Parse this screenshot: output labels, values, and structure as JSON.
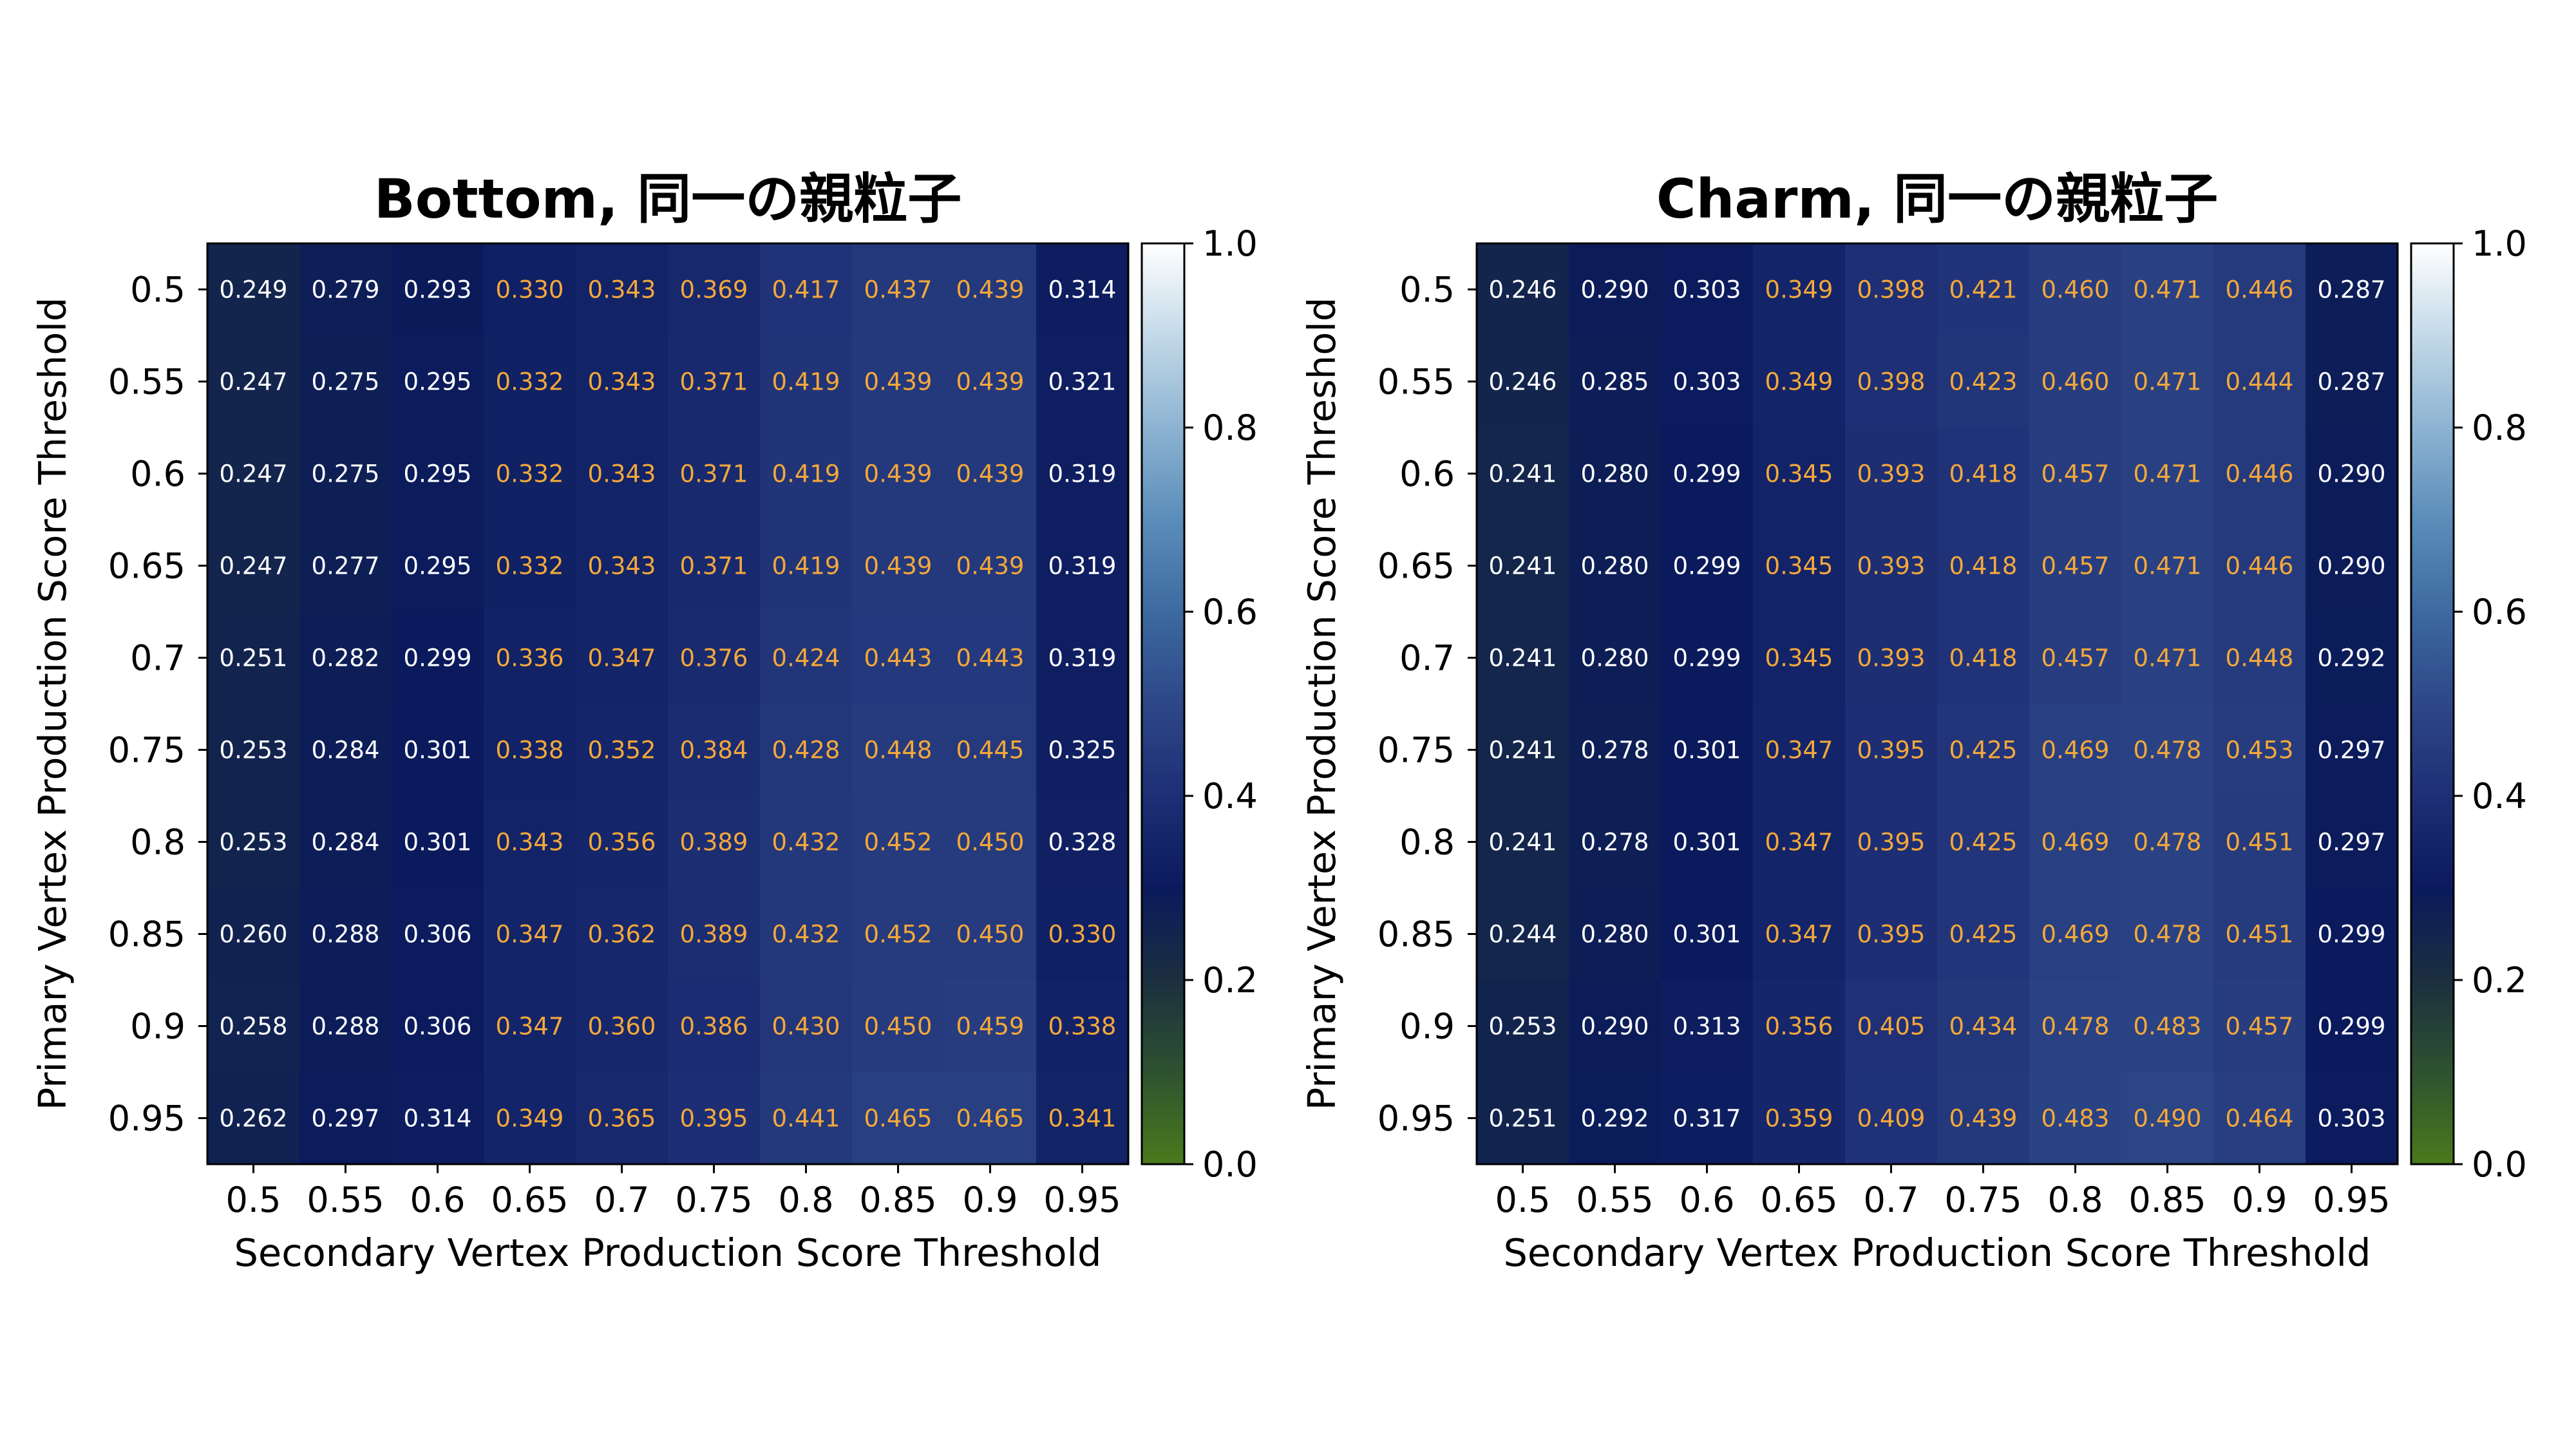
{
  "chart_data": [
    {
      "type": "heatmap",
      "title": "Bottom, 同一の親粒子",
      "xlabel": "Secondary Vertex Production Score Threshold",
      "ylabel": "Primary Vertex Production Score Threshold",
      "x": [
        "0.5",
        "0.55",
        "0.6",
        "0.65",
        "0.7",
        "0.75",
        "0.8",
        "0.85",
        "0.9",
        "0.95"
      ],
      "y": [
        "0.5",
        "0.55",
        "0.6",
        "0.65",
        "0.7",
        "0.75",
        "0.8",
        "0.85",
        "0.9",
        "0.95"
      ],
      "values": [
        [
          "0.249",
          "0.279",
          "0.293",
          "0.330",
          "0.343",
          "0.369",
          "0.417",
          "0.437",
          "0.439",
          "0.314"
        ],
        [
          "0.247",
          "0.275",
          "0.295",
          "0.332",
          "0.343",
          "0.371",
          "0.419",
          "0.439",
          "0.439",
          "0.321"
        ],
        [
          "0.247",
          "0.275",
          "0.295",
          "0.332",
          "0.343",
          "0.371",
          "0.419",
          "0.439",
          "0.439",
          "0.319"
        ],
        [
          "0.247",
          "0.277",
          "0.295",
          "0.332",
          "0.343",
          "0.371",
          "0.419",
          "0.439",
          "0.439",
          "0.319"
        ],
        [
          "0.251",
          "0.282",
          "0.299",
          "0.336",
          "0.347",
          "0.376",
          "0.424",
          "0.443",
          "0.443",
          "0.319"
        ],
        [
          "0.253",
          "0.284",
          "0.301",
          "0.338",
          "0.352",
          "0.384",
          "0.428",
          "0.448",
          "0.445",
          "0.325"
        ],
        [
          "0.253",
          "0.284",
          "0.301",
          "0.343",
          "0.356",
          "0.389",
          "0.432",
          "0.452",
          "0.450",
          "0.328"
        ],
        [
          "0.260",
          "0.288",
          "0.306",
          "0.347",
          "0.362",
          "0.389",
          "0.432",
          "0.452",
          "0.450",
          "0.330"
        ],
        [
          "0.258",
          "0.288",
          "0.306",
          "0.347",
          "0.360",
          "0.386",
          "0.430",
          "0.450",
          "0.459",
          "0.338"
        ],
        [
          "0.262",
          "0.297",
          "0.314",
          "0.349",
          "0.365",
          "0.395",
          "0.441",
          "0.465",
          "0.465",
          "0.341"
        ]
      ],
      "vmin": 0.0,
      "vmax": 1.0,
      "colorbar_ticks": [
        "0.0",
        "0.2",
        "0.4",
        "0.6",
        "0.8",
        "1.0"
      ],
      "highlight_color": "#f4a83a",
      "text_color": "#ffffff"
    },
    {
      "type": "heatmap",
      "title": "Charm, 同一の親粒子",
      "xlabel": "Secondary Vertex Production Score Threshold",
      "ylabel": "Primary Vertex Production Score Threshold",
      "x": [
        "0.5",
        "0.55",
        "0.6",
        "0.65",
        "0.7",
        "0.75",
        "0.8",
        "0.85",
        "0.9",
        "0.95"
      ],
      "y": [
        "0.5",
        "0.55",
        "0.6",
        "0.65",
        "0.7",
        "0.75",
        "0.8",
        "0.85",
        "0.9",
        "0.95"
      ],
      "values": [
        [
          "0.246",
          "0.290",
          "0.303",
          "0.349",
          "0.398",
          "0.421",
          "0.460",
          "0.471",
          "0.446",
          "0.287"
        ],
        [
          "0.246",
          "0.285",
          "0.303",
          "0.349",
          "0.398",
          "0.423",
          "0.460",
          "0.471",
          "0.444",
          "0.287"
        ],
        [
          "0.241",
          "0.280",
          "0.299",
          "0.345",
          "0.393",
          "0.418",
          "0.457",
          "0.471",
          "0.446",
          "0.290"
        ],
        [
          "0.241",
          "0.280",
          "0.299",
          "0.345",
          "0.393",
          "0.418",
          "0.457",
          "0.471",
          "0.446",
          "0.290"
        ],
        [
          "0.241",
          "0.280",
          "0.299",
          "0.345",
          "0.393",
          "0.418",
          "0.457",
          "0.471",
          "0.448",
          "0.292"
        ],
        [
          "0.241",
          "0.278",
          "0.301",
          "0.347",
          "0.395",
          "0.425",
          "0.469",
          "0.478",
          "0.453",
          "0.297"
        ],
        [
          "0.241",
          "0.278",
          "0.301",
          "0.347",
          "0.395",
          "0.425",
          "0.469",
          "0.478",
          "0.451",
          "0.297"
        ],
        [
          "0.244",
          "0.280",
          "0.301",
          "0.347",
          "0.395",
          "0.425",
          "0.469",
          "0.478",
          "0.451",
          "0.299"
        ],
        [
          "0.253",
          "0.290",
          "0.313",
          "0.356",
          "0.405",
          "0.434",
          "0.478",
          "0.483",
          "0.457",
          "0.299"
        ],
        [
          "0.251",
          "0.292",
          "0.317",
          "0.359",
          "0.409",
          "0.439",
          "0.483",
          "0.490",
          "0.464",
          "0.303"
        ]
      ],
      "vmin": 0.0,
      "vmax": 1.0,
      "colorbar_ticks": [
        "0.0",
        "0.2",
        "0.4",
        "0.6",
        "0.8",
        "1.0"
      ],
      "highlight_color": "#f4a83a",
      "text_color": "#ffffff"
    }
  ]
}
